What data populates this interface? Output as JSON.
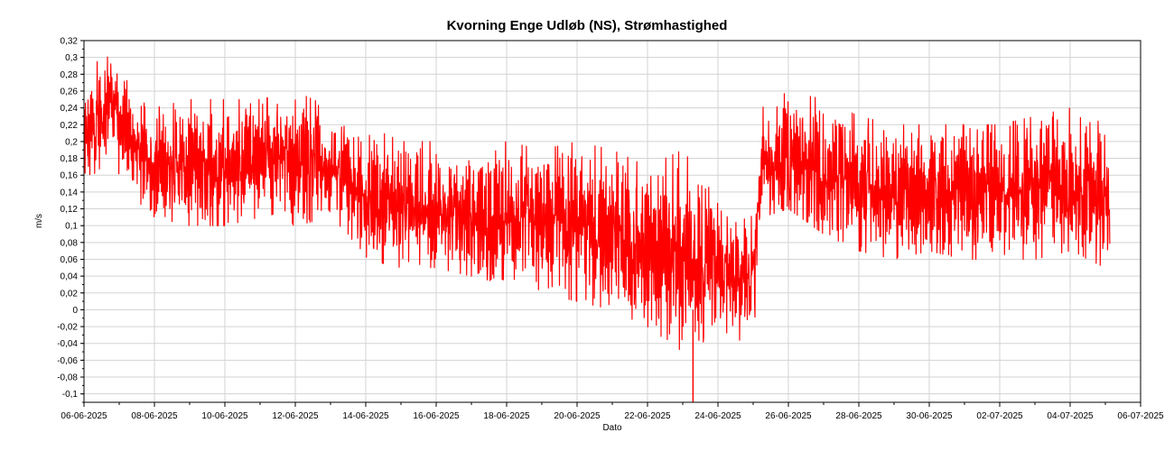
{
  "chart_data": {
    "type": "line",
    "title": "Kvorning Enge Udløb (NS), Strømhastighed",
    "xlabel": "Dato",
    "ylabel": "m/s",
    "grid": true,
    "legend": "none",
    "series_color": "#ff0000",
    "grid_color": "#d3d3d3",
    "xlim": [
      "2025-06-06",
      "2025-07-06"
    ],
    "ylim": [
      -0.11,
      0.32
    ],
    "x_ticks": [
      "06-06-2025",
      "08-06-2025",
      "10-06-2025",
      "12-06-2025",
      "14-06-2025",
      "16-06-2025",
      "18-06-2025",
      "20-06-2025",
      "22-06-2025",
      "24-06-2025",
      "26-06-2025",
      "28-06-2025",
      "30-06-2025",
      "02-07-2025",
      "04-07-2025",
      "06-07-2025"
    ],
    "y_ticks": [
      "0,32",
      "0,3",
      "0,28",
      "0,26",
      "0,24",
      "0,22",
      "0,2",
      "0,18",
      "0,16",
      "0,14",
      "0,12",
      "0,1",
      "0,08",
      "0,06",
      "0,04",
      "0,02",
      "0",
      "-0,02",
      "-0,04",
      "-0,06",
      "-0,08",
      "-0,1"
    ],
    "series": [
      {
        "x": [
          "2025-06-06",
          "2025-06-06T12:00",
          "2025-06-06T18:00",
          "2025-06-07",
          "2025-06-07T12:00",
          "2025-06-08",
          "2025-06-09",
          "2025-06-10",
          "2025-06-11",
          "2025-06-12",
          "2025-06-13",
          "2025-06-13T12:00",
          "2025-06-14",
          "2025-06-15",
          "2025-06-16",
          "2025-06-17",
          "2025-06-18",
          "2025-06-19",
          "2025-06-20",
          "2025-06-21",
          "2025-06-22",
          "2025-06-23",
          "2025-06-24",
          "2025-06-25",
          "2025-06-25T06:00",
          "2025-06-26",
          "2025-06-27",
          "2025-06-28",
          "2025-06-29",
          "2025-06-30",
          "2025-07-01",
          "2025-07-02",
          "2025-07-03",
          "2025-07-04",
          "2025-07-05",
          "2025-07-05T03:00"
        ],
        "y_min": [
          0.15,
          0.17,
          0.2,
          0.16,
          0.13,
          0.11,
          0.1,
          0.1,
          0.11,
          0.1,
          0.11,
          0.09,
          0.06,
          0.05,
          0.05,
          0.04,
          0.03,
          0.02,
          0.01,
          0.0,
          -0.02,
          -0.05,
          -0.03,
          -0.04,
          0.11,
          0.12,
          0.09,
          0.07,
          0.06,
          0.07,
          0.06,
          0.06,
          0.06,
          0.07,
          0.05,
          0.05
        ],
        "y_max": [
          0.28,
          0.3,
          0.32,
          0.29,
          0.25,
          0.24,
          0.25,
          0.25,
          0.25,
          0.26,
          0.24,
          0.23,
          0.22,
          0.2,
          0.2,
          0.19,
          0.2,
          0.19,
          0.2,
          0.19,
          0.17,
          0.19,
          0.13,
          0.11,
          0.24,
          0.26,
          0.25,
          0.23,
          0.22,
          0.22,
          0.22,
          0.22,
          0.23,
          0.24,
          0.22,
          0.17
        ],
        "y_mean": [
          0.2,
          0.23,
          0.26,
          0.22,
          0.19,
          0.17,
          0.17,
          0.17,
          0.18,
          0.18,
          0.17,
          0.16,
          0.13,
          0.12,
          0.12,
          0.11,
          0.11,
          0.1,
          0.1,
          0.09,
          0.07,
          0.05,
          0.05,
          0.04,
          0.17,
          0.18,
          0.16,
          0.15,
          0.14,
          0.14,
          0.14,
          0.14,
          0.15,
          0.15,
          0.14,
          0.1
        ]
      }
    ],
    "annotations": [
      {
        "x": "2025-06-23T07:00",
        "y": -0.11,
        "text": ""
      }
    ]
  }
}
